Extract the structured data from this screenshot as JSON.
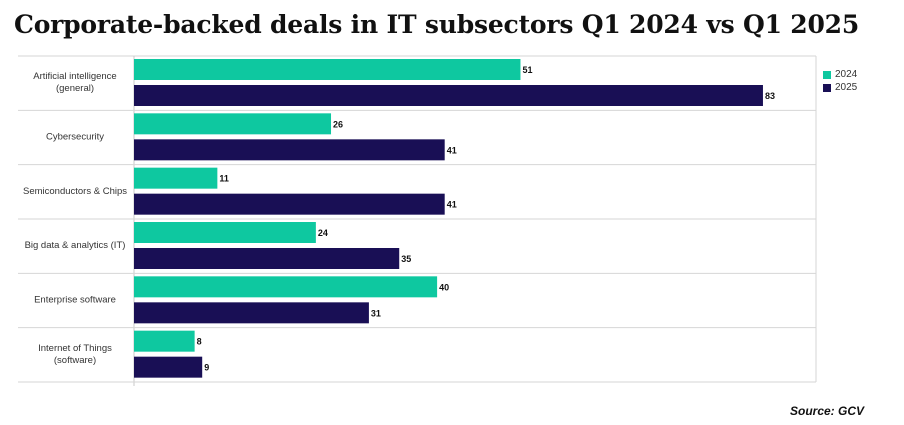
{
  "title": "Corporate-backed deals in IT subsectors Q1 2024 vs Q1 2025",
  "source": "Source: GCV",
  "colors": {
    "2024": "#0ec8a0",
    "2025": "#190f55"
  },
  "chart_data": {
    "type": "bar",
    "orientation": "horizontal",
    "title": "Corporate-backed deals in IT subsectors Q1 2024 vs Q1 2025",
    "categories": [
      [
        "Artificial intelligence",
        "(general)"
      ],
      [
        "Cybersecurity"
      ],
      [
        "Semiconductors & Chips"
      ],
      [
        "Big data & analytics (IT)"
      ],
      [
        "Enterprise software"
      ],
      [
        "Internet of Things",
        "(software)"
      ]
    ],
    "series": [
      {
        "name": "2024",
        "values": [
          51,
          26,
          11,
          24,
          40,
          8
        ]
      },
      {
        "name": "2025",
        "values": [
          83,
          41,
          41,
          35,
          31,
          9
        ]
      }
    ],
    "xlim": [
      0,
      90
    ],
    "grid": false,
    "legend_position": "right",
    "data_labels": true
  }
}
